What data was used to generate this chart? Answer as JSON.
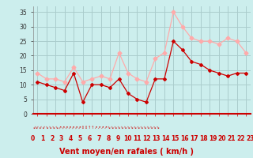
{
  "xlabel": "Vent moyen/en rafales ( km/h )",
  "background_color": "#cceeed",
  "grid_color": "#aacccc",
  "line_color_avg": "#cc0000",
  "line_color_gust": "#ffaaaa",
  "ylim": [
    0,
    37
  ],
  "yticks": [
    0,
    5,
    10,
    15,
    20,
    25,
    30,
    35
  ],
  "hours": [
    0,
    1,
    2,
    3,
    4,
    5,
    6,
    7,
    8,
    9,
    10,
    11,
    12,
    13,
    14,
    15,
    16,
    17,
    18,
    19,
    20,
    21,
    22,
    23
  ],
  "wind_avg": [
    11,
    10,
    9,
    8,
    14,
    4,
    10,
    10,
    9,
    12,
    7,
    5,
    4,
    12,
    12,
    25,
    22,
    18,
    17,
    15,
    14,
    13,
    14,
    14
  ],
  "wind_gust": [
    14,
    12,
    12,
    11,
    16,
    11,
    12,
    13,
    12,
    21,
    14,
    12,
    11,
    19,
    21,
    35,
    30,
    26,
    25,
    25,
    24,
    26,
    25,
    21
  ],
  "tick_fontsize": 5.5,
  "axis_label_fontsize": 7,
  "wind_symbols": "⇙⇙⇙⇙⇙⇙⇘⇘⇘⇘⇘⇗⇗⇗⇗⇖⇖⇖⇖⇕⇕⇕⇕⇔"
}
